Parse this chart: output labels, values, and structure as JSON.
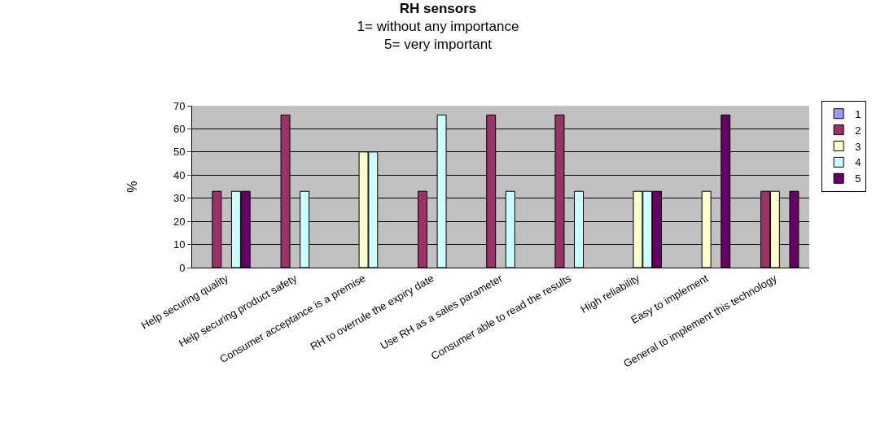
{
  "chart_data": {
    "type": "bar",
    "title": "RH sensors",
    "subtitle": "1= without any importance\n5= very important",
    "ylabel": "%",
    "categories": [
      "Help securing quality",
      "Help securing product safety",
      "Consumer acceptance is a premise",
      "RH to overrule the expiry date",
      "Use RH as a sales parameter",
      "Consumer able to read the results",
      "High reliability",
      "Easy to implement",
      "General to implement this technology"
    ],
    "series": [
      {
        "name": "1",
        "color": "#9999ff",
        "values": [
          null,
          null,
          null,
          null,
          null,
          null,
          null,
          null,
          null
        ]
      },
      {
        "name": "2",
        "color": "#993366",
        "values": [
          33,
          66,
          null,
          33,
          66,
          66,
          null,
          null,
          33
        ]
      },
      {
        "name": "3",
        "color": "#ffffcc",
        "values": [
          null,
          null,
          50,
          null,
          null,
          null,
          33,
          33,
          33
        ]
      },
      {
        "name": "4",
        "color": "#ccffff",
        "values": [
          33,
          33,
          50,
          66,
          33,
          33,
          33,
          null,
          null
        ]
      },
      {
        "name": "5",
        "color": "#660066",
        "values": [
          33,
          null,
          null,
          null,
          null,
          null,
          33,
          66,
          33
        ]
      }
    ],
    "ylim": [
      0,
      70
    ],
    "yticks": [
      0,
      10,
      20,
      30,
      40,
      50,
      60,
      70
    ],
    "grid": "y",
    "legend": "right"
  }
}
